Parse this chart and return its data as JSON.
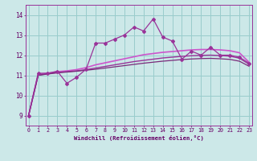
{
  "xlabel": "Windchill (Refroidissement éolien,°C)",
  "x": [
    0,
    1,
    2,
    3,
    4,
    5,
    6,
    7,
    8,
    9,
    10,
    11,
    12,
    13,
    14,
    15,
    16,
    17,
    18,
    19,
    20,
    21,
    22,
    23
  ],
  "line1": [
    9.0,
    11.1,
    11.1,
    11.2,
    10.6,
    10.9,
    11.3,
    12.6,
    12.6,
    12.8,
    13.0,
    13.4,
    13.2,
    13.8,
    12.9,
    12.7,
    11.8,
    12.2,
    12.0,
    12.4,
    12.0,
    12.0,
    11.9,
    11.6
  ],
  "line2_smooth": [
    9.0,
    11.05,
    11.1,
    11.18,
    11.22,
    11.28,
    11.38,
    11.52,
    11.62,
    11.72,
    11.82,
    11.92,
    12.02,
    12.08,
    12.14,
    12.18,
    12.22,
    12.26,
    12.28,
    12.28,
    12.26,
    12.22,
    12.12,
    11.65
  ],
  "line3_smooth": [
    9.0,
    11.0,
    11.08,
    11.14,
    11.18,
    11.22,
    11.28,
    11.36,
    11.44,
    11.52,
    11.6,
    11.68,
    11.74,
    11.8,
    11.86,
    11.9,
    11.94,
    11.97,
    11.99,
    12.0,
    11.98,
    11.95,
    11.85,
    11.55
  ],
  "line4_smooth": [
    9.0,
    11.0,
    11.06,
    11.12,
    11.16,
    11.2,
    11.25,
    11.3,
    11.36,
    11.42,
    11.48,
    11.54,
    11.6,
    11.65,
    11.7,
    11.74,
    11.78,
    11.81,
    11.83,
    11.84,
    11.82,
    11.79,
    11.7,
    11.45
  ],
  "line_color": "#993399",
  "smooth_color1": "#cc55cc",
  "smooth_color2": "#993399",
  "smooth_color3": "#7a2a7a",
  "bg_color": "#cce8e8",
  "grid_color": "#99cccc",
  "ylim": [
    8.5,
    14.5
  ],
  "xlim": [
    0,
    23
  ],
  "yticks": [
    9,
    10,
    11,
    12,
    13,
    14
  ],
  "xticks": [
    0,
    1,
    2,
    3,
    4,
    5,
    6,
    7,
    8,
    9,
    10,
    11,
    12,
    13,
    14,
    15,
    16,
    17,
    18,
    19,
    20,
    21,
    22,
    23
  ]
}
